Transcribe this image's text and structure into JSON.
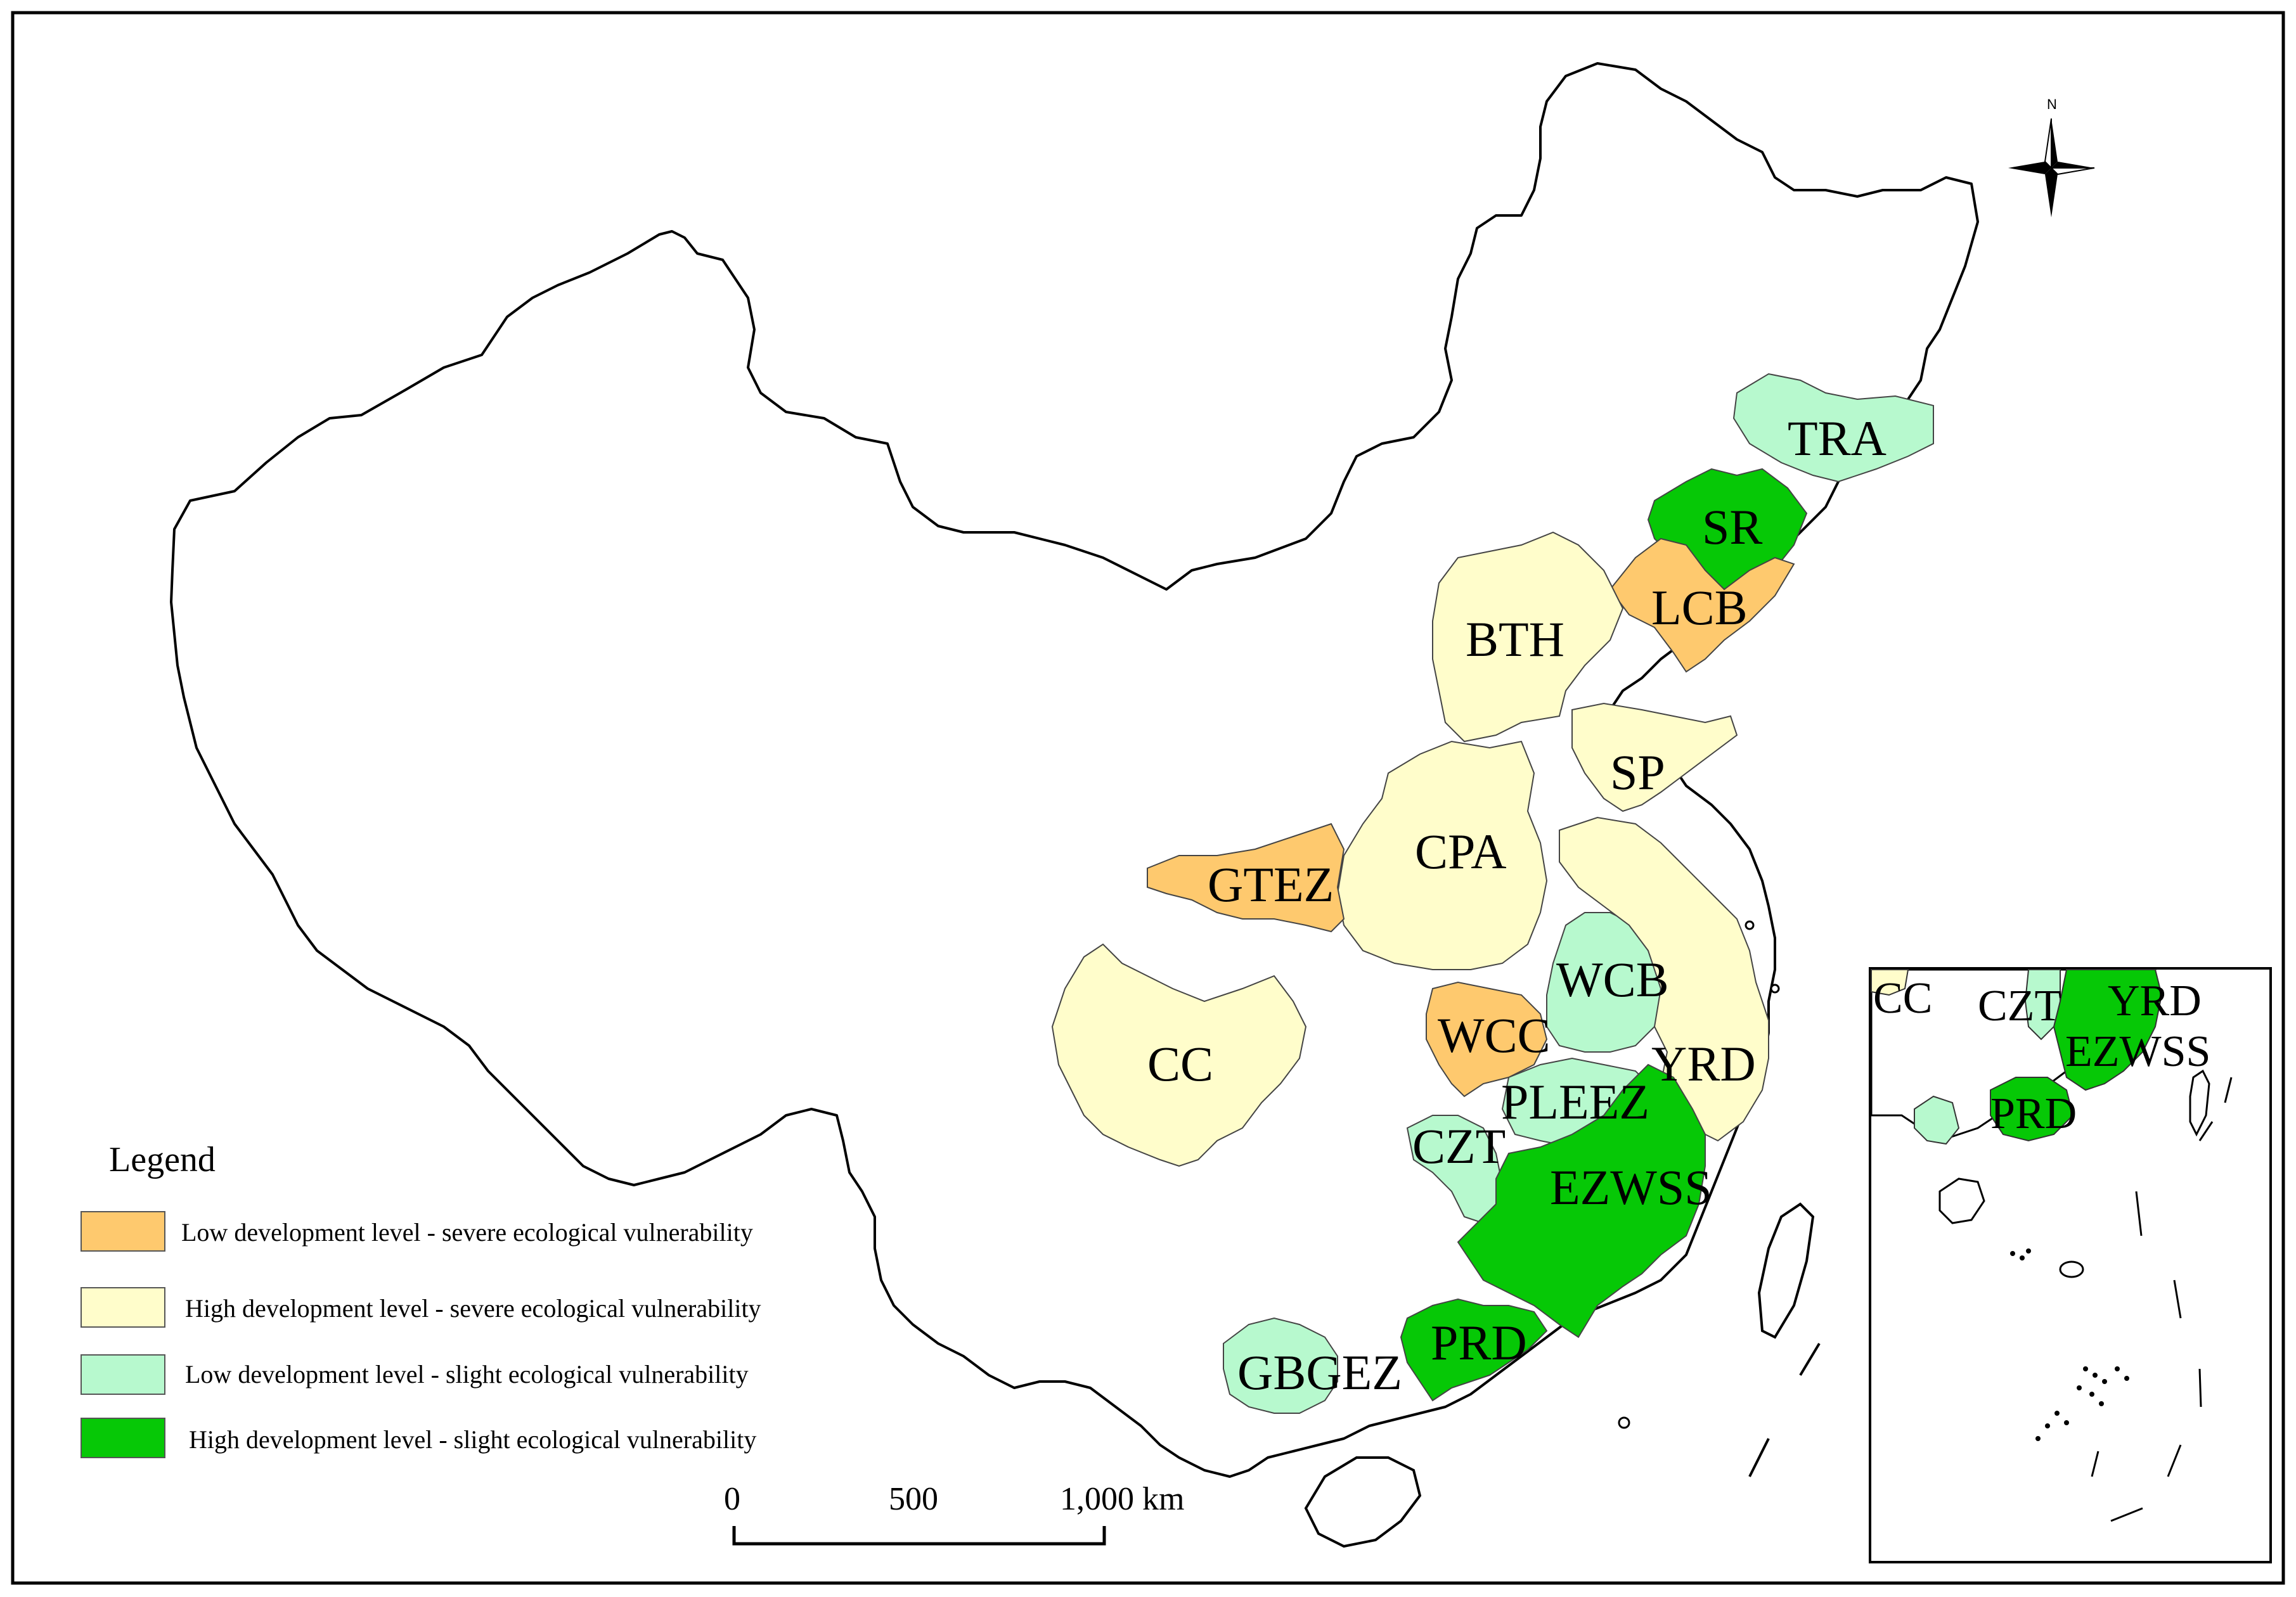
{
  "colors": {
    "low_severe": "#FEC96E",
    "high_severe": "#FFFDCB",
    "low_slight": "#B7F9CE",
    "high_slight": "#06C806",
    "outline": "#000000",
    "inset_border": "#000000"
  },
  "north_arrow": {
    "label": "N",
    "icon": "compass-rose-icon"
  },
  "regions": [
    {
      "id": "tra",
      "label": "TRA",
      "class": "low_slight"
    },
    {
      "id": "sr",
      "label": "SR",
      "class": "high_slight"
    },
    {
      "id": "lcb",
      "label": "LCB",
      "class": "low_severe"
    },
    {
      "id": "bth",
      "label": "BTH",
      "class": "high_severe"
    },
    {
      "id": "sp",
      "label": "SP",
      "class": "high_severe"
    },
    {
      "id": "cpa",
      "label": "CPA",
      "class": "high_severe"
    },
    {
      "id": "gtez",
      "label": "GTEZ",
      "class": "low_severe"
    },
    {
      "id": "wcb",
      "label": "WCB",
      "class": "low_slight"
    },
    {
      "id": "wcc",
      "label": "WCC",
      "class": "low_severe"
    },
    {
      "id": "yrd",
      "label": "YRD",
      "class": "high_severe"
    },
    {
      "id": "cc",
      "label": "CC",
      "class": "high_severe"
    },
    {
      "id": "pleez",
      "label": "PLEEZ",
      "class": "low_slight"
    },
    {
      "id": "czt",
      "label": "CZT",
      "class": "low_slight"
    },
    {
      "id": "ezwss",
      "label": "EZWSS",
      "class": "high_slight"
    },
    {
      "id": "prd",
      "label": "PRD",
      "class": "high_slight"
    },
    {
      "id": "gbgez",
      "label": "GBGEZ",
      "class": "low_slight"
    }
  ],
  "inset": {
    "labels": [
      "CC",
      "CZT",
      "YRD",
      "EZWSS",
      "PRD"
    ]
  },
  "legend": {
    "title": "Legend",
    "items": [
      {
        "class": "low_severe",
        "label": "Low development level - severe ecological vulnerability"
      },
      {
        "class": "high_severe",
        "label": "High development level - severe ecological vulnerability"
      },
      {
        "class": "low_slight",
        "label": "Low development level - slight ecological vulnerability"
      },
      {
        "class": "high_slight",
        "label": "High development level - slight ecological vulnerability"
      }
    ]
  },
  "scale_bar": {
    "ticks": [
      "0",
      "500",
      "1,000 km"
    ]
  }
}
